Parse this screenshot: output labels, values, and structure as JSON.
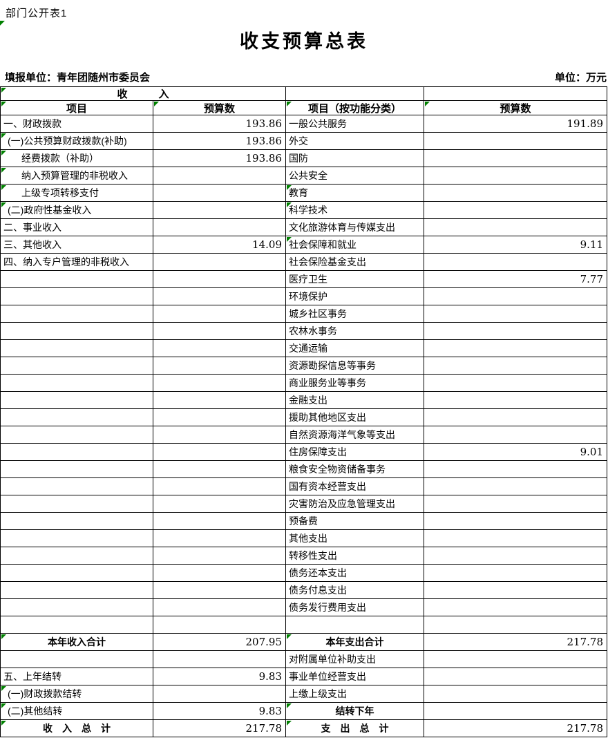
{
  "page": {
    "corner_label": "部门公开表1",
    "title": "收支预算总表",
    "reporting_unit": "填报单位：青年团随州市委员会",
    "unit_note": "单位：万元"
  },
  "colors": {
    "flag_green": "#008000",
    "grid_line": "#000000",
    "background": "#ffffff"
  },
  "table": {
    "income_section_header": "收　　　入",
    "col_headers": [
      "项目",
      "预算数",
      "项目（按功能分类）",
      "预算数"
    ],
    "rows": [
      {
        "left": "一、财政拨款",
        "left_value": "193.86",
        "right": "一般公共服务",
        "right_value": "191.89"
      },
      {
        "left": "(一)公共预算财政拨款(补助)",
        "left_value": "193.86",
        "left_indent": 1,
        "left_flag": true,
        "right": "外交"
      },
      {
        "left": "经费拨款（补助）",
        "left_value": "193.86",
        "left_indent": 2,
        "left_flag": true,
        "right": "国防"
      },
      {
        "left": "纳入预算管理的非税收入",
        "left_indent": 2,
        "left_flag": true,
        "right": "公共安全"
      },
      {
        "left": "上级专项转移支付",
        "left_indent": 2,
        "left_flag": true,
        "right": "教育",
        "right_flag": true
      },
      {
        "left": "(二)政府性基金收入",
        "left_indent": 1,
        "left_flag": true,
        "right": "科学技术",
        "right_flag": true
      },
      {
        "left": "二、事业收入",
        "right": "文化旅游体育与传媒支出"
      },
      {
        "left": "三、其他收入",
        "left_value": "14.09",
        "right": "社会保障和就业",
        "right_value": "9.11",
        "right_flag": true
      },
      {
        "left": "四、纳入专户管理的非税收入",
        "right": "社会保险基金支出"
      },
      {
        "right": "医疗卫生",
        "right_value": "7.77"
      },
      {
        "right": "环境保护"
      },
      {
        "right": "城乡社区事务"
      },
      {
        "right": "农林水事务"
      },
      {
        "right": "交通运输"
      },
      {
        "right": "资源勘探信息等事务"
      },
      {
        "right": "商业服务业等事务"
      },
      {
        "right": "金融支出"
      },
      {
        "right": "援助其他地区支出"
      },
      {
        "right": "自然资源海洋气象等支出"
      },
      {
        "right": "住房保障支出",
        "right_value": "9.01"
      },
      {
        "right": "粮食安全物资储备事务"
      },
      {
        "right": "国有资本经营支出"
      },
      {
        "right": "灾害防治及应急管理支出"
      },
      {
        "right": "预备费"
      },
      {
        "right": "其他支出"
      },
      {
        "right": "转移性支出"
      },
      {
        "right": "债务还本支出"
      },
      {
        "right": "债务付息支出"
      },
      {
        "right": "债务发行费用支出"
      },
      {},
      {
        "left": "本年收入合计",
        "left_value": "207.95",
        "left_bold": true,
        "left_flag": true,
        "right": "本年支出合计",
        "right_value": "217.78",
        "right_bold": true,
        "right_flag": true
      },
      {
        "right": "对附属单位补助支出"
      },
      {
        "left": "五、上年结转",
        "left_value": "9.83",
        "right": "事业单位经营支出"
      },
      {
        "left": "(一)财政拨款结转",
        "left_indent": 1,
        "left_flag": true,
        "right": "上缴上级支出"
      },
      {
        "left": "(二)其他结转",
        "left_value": "9.83",
        "left_indent": 1,
        "left_flag": true,
        "right": "结转下年",
        "right_bold": true,
        "right_flag": true
      },
      {
        "left": "收　入　总　计",
        "left_value": "217.78",
        "left_bold": true,
        "left_flag": true,
        "right": "支　出　总　计",
        "right_value": "217.78",
        "right_bold": true,
        "right_flag": true
      }
    ]
  }
}
